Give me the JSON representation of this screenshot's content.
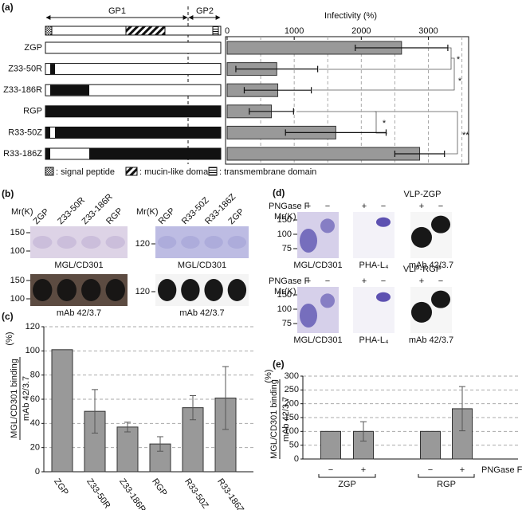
{
  "panel_labels": [
    "(a)",
    "(b)",
    "(c)",
    "(d)",
    "(e)"
  ],
  "schematic": {
    "regions": [
      "GP1",
      "GP2"
    ],
    "legend": [
      ": signal peptide",
      ": mucin-like domain",
      ": transmembrane domain"
    ]
  },
  "chart_data": [
    {
      "type": "bar",
      "orientation": "horizontal",
      "title": "Infectivity (%)",
      "categories": [
        "ZGP",
        "Z33-50R",
        "Z33-186R",
        "RGP",
        "R33-50Z",
        "R33-186Z"
      ],
      "values": [
        2600,
        740,
        755,
        660,
        1620,
        2870
      ],
      "errors": [
        690,
        610,
        500,
        330,
        750,
        370
      ],
      "color": "#999999",
      "xlim": [
        0,
        3600
      ],
      "xticks": [
        0,
        1000,
        2000,
        3000
      ],
      "xgrid": [
        500,
        1000,
        1500,
        2000,
        2500,
        3000,
        3500
      ],
      "grid": true,
      "annotations": [
        "*",
        "*",
        "*",
        "**"
      ]
    },
    {
      "type": "bar",
      "ylabel": "MGL/CD301 binding",
      "ylabel_denominator": "mAb 42/3.7",
      "ylabel_unit": "(%)",
      "categories": [
        "ZGP",
        "Z33-50R",
        "Z33-186R",
        "RGP",
        "R33-50Z",
        "R33-186Z"
      ],
      "values": [
        101,
        50,
        37,
        23,
        53,
        61
      ],
      "errors": [
        null,
        18,
        4,
        6,
        10,
        26
      ],
      "color": "#999999",
      "ylim": [
        0,
        120
      ],
      "yticks": [
        0,
        20,
        40,
        60,
        80,
        100,
        120
      ],
      "grid": true
    },
    {
      "type": "bar",
      "ylabel": "MGL/CD301 binding",
      "ylabel_denominator": "mAb 42/3.7",
      "ylabel_unit": "(%)",
      "categories": [
        "−",
        "+",
        "−",
        "+"
      ],
      "groups": [
        "ZGP",
        "RGP"
      ],
      "group_title": "PNGase F",
      "values": [
        100,
        100,
        100,
        182
      ],
      "errors": [
        null,
        35,
        null,
        80
      ],
      "color": "#999999",
      "ylim": [
        0,
        300
      ],
      "yticks": [
        0,
        50,
        100,
        150,
        200,
        250,
        300
      ],
      "grid": true
    }
  ],
  "blots_b": [
    {
      "lanes": [
        "ZGP",
        "Z33-50R",
        "Z33-186R",
        "RGP"
      ],
      "mr_label": "Mr(K)",
      "rows": [
        {
          "ticks": [
            150,
            100
          ],
          "caption": "MGL/CD301"
        },
        {
          "ticks": [
            150,
            100
          ],
          "caption": "mAb 42/3.7"
        }
      ]
    },
    {
      "lanes": [
        "RGP",
        "R33-50Z",
        "R33-186Z",
        "ZGP"
      ],
      "mr_label": "Mr(K)",
      "rows": [
        {
          "ticks": [
            120
          ],
          "caption": "MGL/CD301"
        },
        {
          "ticks": [
            120
          ],
          "caption": "mAb 42/3.7"
        }
      ]
    }
  ],
  "blots_d": [
    {
      "title": "VLP-ZGP",
      "treatment": "PNGase F",
      "signs": [
        "+",
        "−",
        "+",
        "−",
        "+",
        "−"
      ],
      "mr_label": "Mr(K)",
      "ticks": [
        150,
        100,
        75
      ],
      "captions": [
        "MGL/CD301",
        "PHA-L₄",
        "mAb 42/3.7"
      ]
    },
    {
      "title": "VLP-RGP",
      "treatment": "PNGase F",
      "signs": [
        "+",
        "−",
        "+",
        "−",
        "+",
        "−"
      ],
      "mr_label": "Mr(K)",
      "ticks": [
        150,
        100,
        75
      ],
      "captions": [
        "MGL/CD301",
        "PHA-L₄",
        "mAb 42/3.7"
      ]
    }
  ]
}
